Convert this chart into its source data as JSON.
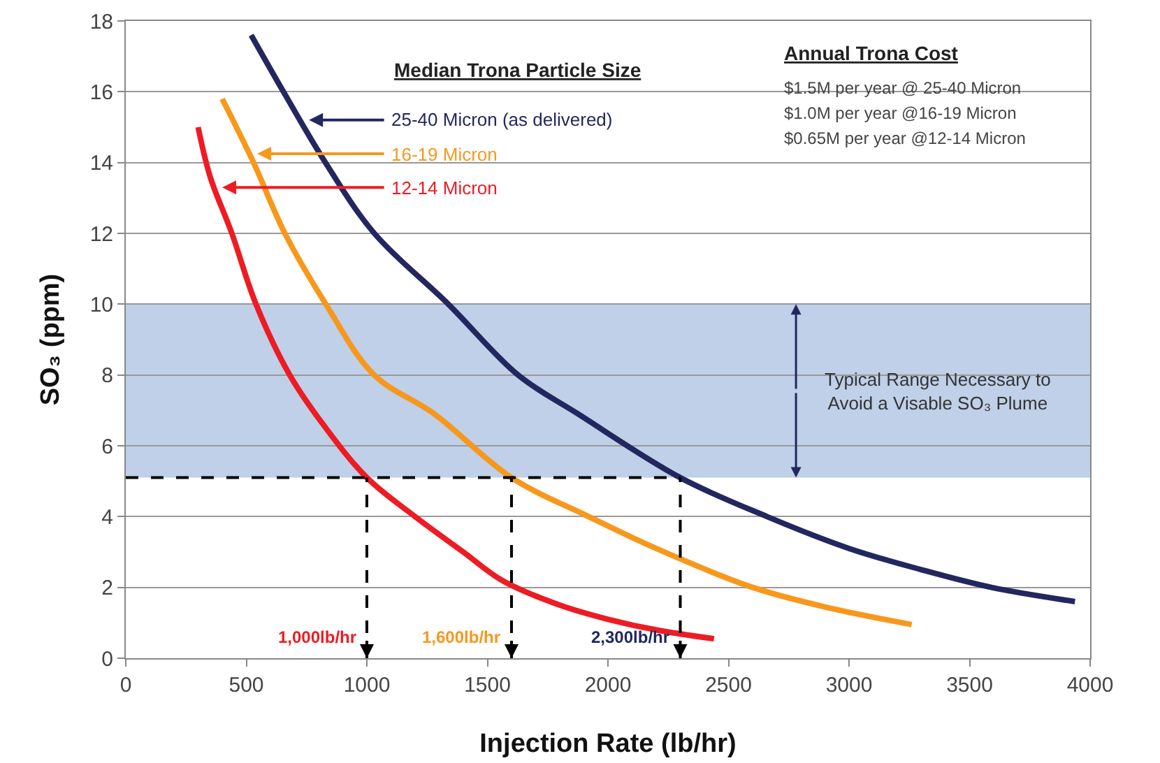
{
  "chart_data": {
    "type": "line",
    "xlabel": "Injection Rate (lb/hr)",
    "ylabel": "SO₃ (ppm)",
    "legend_title": "Median Trona Particle Size",
    "xlim": [
      0,
      4000
    ],
    "ylim": [
      0,
      18
    ],
    "xticks": [
      0,
      500,
      1000,
      1500,
      2000,
      2500,
      3000,
      3500,
      4000
    ],
    "yticks": [
      0,
      2,
      4,
      6,
      8,
      10,
      12,
      14,
      16,
      18
    ],
    "grid": "y",
    "legend": "top",
    "marker": "none",
    "line_style": "solid",
    "series": [
      {
        "name": "25-40 Micron (as delivered)",
        "color": "#23275f",
        "x": [
          520,
          654,
          828,
          1031,
          1338,
          1627,
          1876,
          2300,
          2660,
          3000,
          3300,
          3590,
          3937
        ],
        "values": [
          17.6,
          16,
          14,
          12,
          10,
          8,
          6.9,
          5.1,
          4,
          3.1,
          2.5,
          2,
          1.6
        ]
      },
      {
        "name": "16-19 Micron",
        "color": "#f7981d",
        "x": [
          400,
          530,
          660,
          830,
          1030,
          1280,
          1600,
          1920,
          2200,
          2600,
          2900,
          3260
        ],
        "values": [
          15.8,
          14,
          12,
          10,
          8,
          6.9,
          5.1,
          4,
          3.1,
          2,
          1.45,
          0.95
        ]
      },
      {
        "name": "12-14 Micron",
        "color": "#ed1c24",
        "x": [
          300,
          350,
          440,
          540,
          680,
          830,
          1000,
          1200,
          1400,
          1560,
          1800,
          2000,
          2200,
          2440
        ],
        "values": [
          15,
          13.6,
          12,
          10,
          8,
          6.5,
          5.1,
          4,
          3,
          2.2,
          1.5,
          1.1,
          0.8,
          0.55
        ]
      }
    ],
    "bands": [
      {
        "axis": "y",
        "from": 5.1,
        "to": 10,
        "label": "Typical Range Necessary to\nAvoid a Visable SO₃ Plume",
        "color": "#b8cbe6"
      }
    ],
    "ref_lines": [
      {
        "axis": "y",
        "value": 5.1,
        "line_style": "dashed",
        "color": "#000000"
      },
      {
        "axis": "x",
        "value": 1000,
        "label": "1,000lb/hr",
        "color": "#000000",
        "line_style": "dashed"
      },
      {
        "axis": "x",
        "value": 1600,
        "label": "1,600lb/hr",
        "color": "#000000",
        "line_style": "dashed"
      },
      {
        "axis": "x",
        "value": 2300,
        "label": "2,300lb/hr",
        "color": "#000000",
        "line_style": "dashed"
      }
    ],
    "annotations": [
      "Annual Trona Cost",
      "$1.5M per year @ 25-40 Micron",
      "$1.0M per year @16-19 Micron",
      "$0.65M per year @12-14 Micron"
    ]
  }
}
